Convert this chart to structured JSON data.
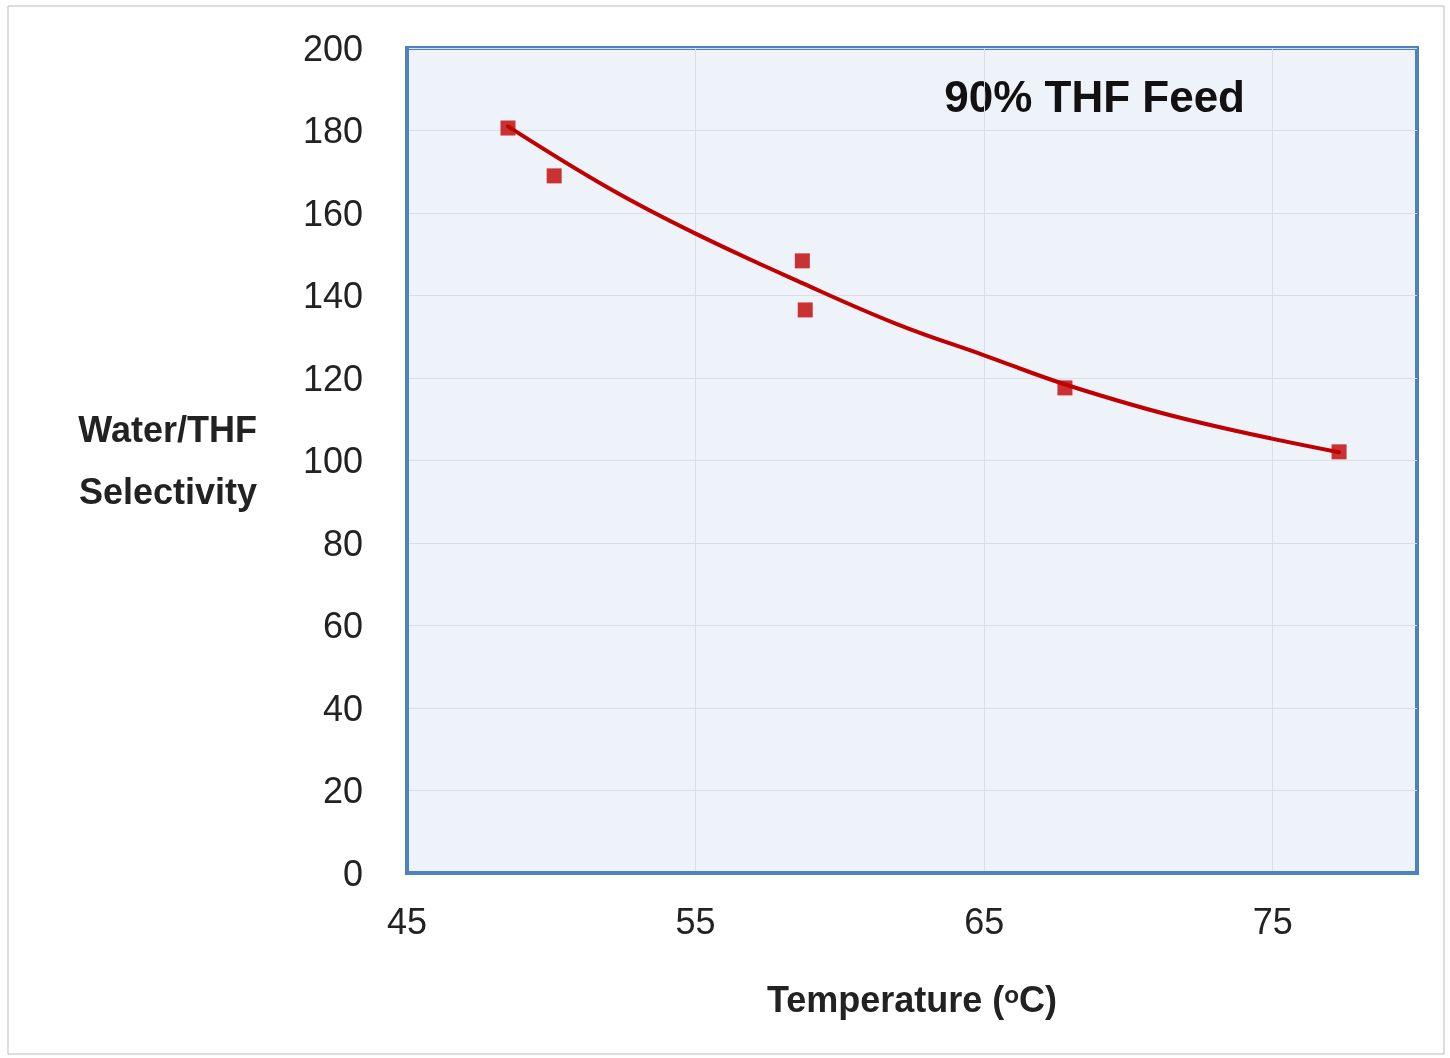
{
  "chart_data": {
    "type": "scatter",
    "xlabel": "Temperature (ᵒC)",
    "ylabel": "Water/THF\nSelectivity",
    "annotations": [
      "90% THF Feed"
    ],
    "xlim": [
      45,
      80
    ],
    "xticks": [
      45,
      55,
      65,
      75
    ],
    "ylim": [
      0,
      200
    ],
    "yticks": [
      0,
      20,
      40,
      60,
      80,
      100,
      120,
      140,
      160,
      180,
      200
    ],
    "grid": true,
    "series": [
      {
        "marker": "square",
        "color": "#c00000",
        "x": [
          48.5,
          50.1,
          58.7,
          58.8,
          67.8,
          77.3
        ],
        "values": [
          180.6,
          169,
          148.4,
          136.5,
          117.6,
          102.1
        ]
      },
      {
        "type": "line",
        "marker": "none",
        "line_style": "solid",
        "color": "#c00000",
        "x": [
          48.5,
          52,
          55,
          58.7,
          62,
          65,
          68,
          72,
          77.3
        ],
        "values": [
          181,
          166,
          155,
          143,
          133,
          125.5,
          118,
          110,
          102
        ]
      }
    ]
  }
}
